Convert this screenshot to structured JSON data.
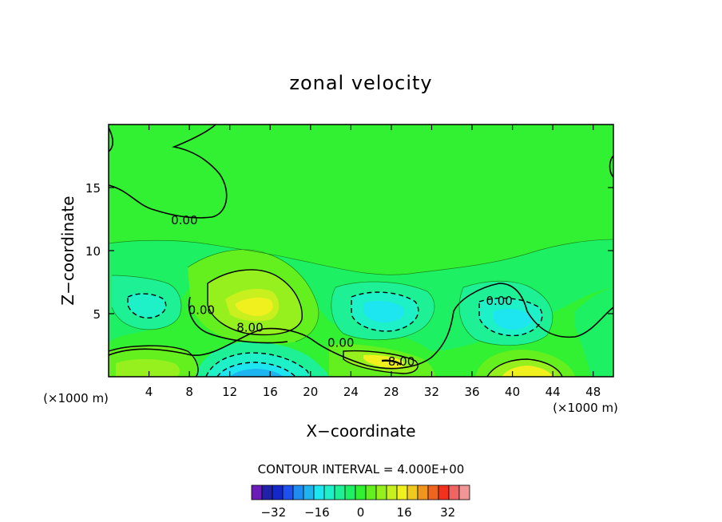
{
  "chart_data": {
    "type": "contour",
    "title": "zonal velocity",
    "xlabel": "X−coordinate",
    "ylabel": "Z−coordinate",
    "x_unit_left": "(×1000 m)",
    "x_unit_right": "(×1000 m)",
    "x_ticks": [
      4,
      8,
      12,
      16,
      20,
      24,
      28,
      32,
      36,
      40,
      44,
      48
    ],
    "y_ticks": [
      5,
      10,
      15
    ],
    "xlim": [
      0,
      50
    ],
    "ylim": [
      0,
      20
    ],
    "contour_labels": [
      {
        "text": "0.00",
        "x": 7.5,
        "y": 12.4
      },
      {
        "text": "0.00",
        "x": 9.2,
        "y": 5.3
      },
      {
        "text": "8.00",
        "x": 14.0,
        "y": 3.9
      },
      {
        "text": "0.00",
        "x": 23.0,
        "y": 2.7
      },
      {
        "text": "8.00",
        "x": 29.0,
        "y": 1.2
      },
      {
        "text": "0.00",
        "x": 38.7,
        "y": 6.0
      }
    ],
    "features": [
      {
        "kind": "max",
        "x": 15.5,
        "y": 5.6,
        "value": 12
      },
      {
        "kind": "min",
        "x": 15.5,
        "y": 0.5,
        "value": -16
      },
      {
        "kind": "min",
        "x": 27.5,
        "y": 5.5,
        "value": -12
      },
      {
        "kind": "min",
        "x": 39.5,
        "y": 4.5,
        "value": -12
      },
      {
        "kind": "min",
        "x": 4.0,
        "y": 5.8,
        "value": -8
      },
      {
        "kind": "max",
        "x": 4.0,
        "y": 1.0,
        "value": 8
      },
      {
        "kind": "max",
        "x": 28.0,
        "y": 1.5,
        "value": 12
      },
      {
        "kind": "max",
        "x": 41.0,
        "y": 0.5,
        "value": 12
      }
    ],
    "contour_interval_label": "CONTOUR INTERVAL = 4.000E+00",
    "colorbar": {
      "colors": [
        "#6a1bb8",
        "#2020a8",
        "#1428c8",
        "#1e50f0",
        "#1e8cf0",
        "#1eb4f0",
        "#1ee6f0",
        "#1ef0c8",
        "#1ef096",
        "#1ef064",
        "#32f032",
        "#64f01e",
        "#96f01e",
        "#c8f01e",
        "#f0f01e",
        "#f0c81e",
        "#f0961e",
        "#f0641e",
        "#f0321e",
        "#f06464",
        "#f09696"
      ],
      "tick_labels": [
        "−32",
        "−16",
        "0",
        "16",
        "32"
      ],
      "tick_values": [
        -32,
        -16,
        0,
        16,
        32
      ],
      "range": [
        -40,
        40
      ]
    }
  }
}
